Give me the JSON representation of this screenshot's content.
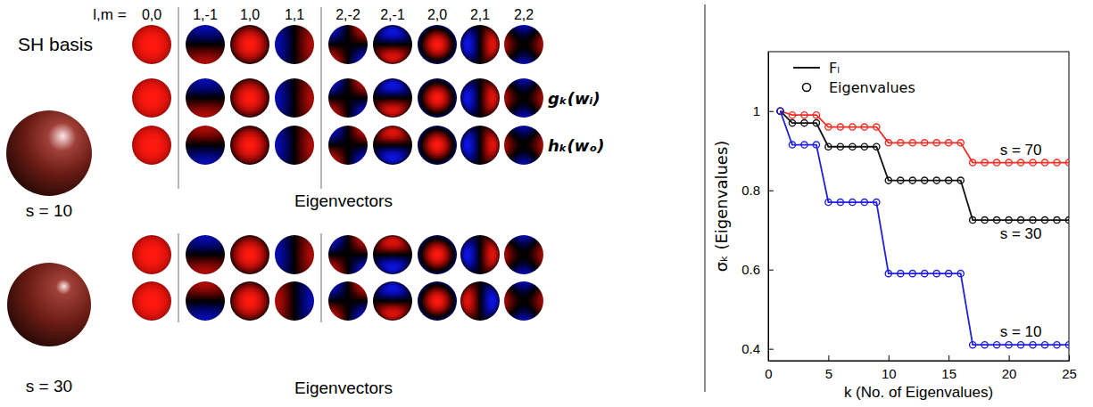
{
  "chart_data": {
    "type": "line",
    "x": [
      1,
      2,
      3,
      4,
      5,
      6,
      7,
      8,
      9,
      10,
      11,
      12,
      13,
      14,
      15,
      16,
      17,
      18,
      19,
      20,
      21,
      22,
      23,
      24,
      25
    ],
    "xlim": [
      0,
      25
    ],
    "xticks": [
      0,
      5,
      10,
      15,
      20,
      25
    ],
    "ylim": [
      0.37,
      1.15
    ],
    "yticks": [
      0.4,
      0.6,
      0.8,
      1
    ],
    "x_label": "k (No. of Eigenvalues)",
    "y_label": "σₖ (Eigenvalues)",
    "legend": "top-left",
    "legend_entries": [
      {
        "label": "Fₗ",
        "line_style": "solid"
      },
      {
        "label": "Eigenvalues",
        "marker": "circle"
      }
    ],
    "series": [
      {
        "name": "s = 70",
        "color": "#ee2e24",
        "marker": "circle",
        "line_style": "solid",
        "values": [
          1,
          0.99,
          0.99,
          0.99,
          0.96,
          0.96,
          0.96,
          0.96,
          0.96,
          0.92,
          0.92,
          0.92,
          0.92,
          0.92,
          0.92,
          0.92,
          0.87,
          0.87,
          0.87,
          0.87,
          0.87,
          0.87,
          0.87,
          0.87,
          0.87
        ]
      },
      {
        "name": "s = 30",
        "color": "#111111",
        "marker": "circle",
        "line_style": "solid",
        "values": [
          1,
          0.97,
          0.97,
          0.97,
          0.91,
          0.91,
          0.91,
          0.91,
          0.91,
          0.825,
          0.825,
          0.825,
          0.825,
          0.825,
          0.825,
          0.825,
          0.725,
          0.725,
          0.725,
          0.725,
          0.725,
          0.725,
          0.725,
          0.725,
          0.725
        ]
      },
      {
        "name": "s = 10",
        "color": "#2020e0",
        "marker": "circle",
        "line_style": "solid",
        "values": [
          1,
          0.915,
          0.915,
          0.915,
          0.77,
          0.77,
          0.77,
          0.77,
          0.77,
          0.59,
          0.59,
          0.59,
          0.59,
          0.59,
          0.59,
          0.59,
          0.41,
          0.41,
          0.41,
          0.41,
          0.41,
          0.41,
          0.41,
          0.41,
          0.41
        ]
      }
    ]
  },
  "figure": {
    "header": "l,m =",
    "columns": [
      "0,0",
      "1,-1",
      "1,0",
      "1,1",
      "2,-2",
      "2,-1",
      "2,0",
      "2,1",
      "2,2"
    ],
    "basis_label": "SH basis",
    "row_labels": [
      "gₖ(wᵢ)",
      "hₖ(wₒ)"
    ],
    "groups": [
      {
        "label": "s = 10",
        "caption": "Eigenvectors"
      },
      {
        "label": "s = 30",
        "caption": "Eigenvectors"
      }
    ]
  }
}
